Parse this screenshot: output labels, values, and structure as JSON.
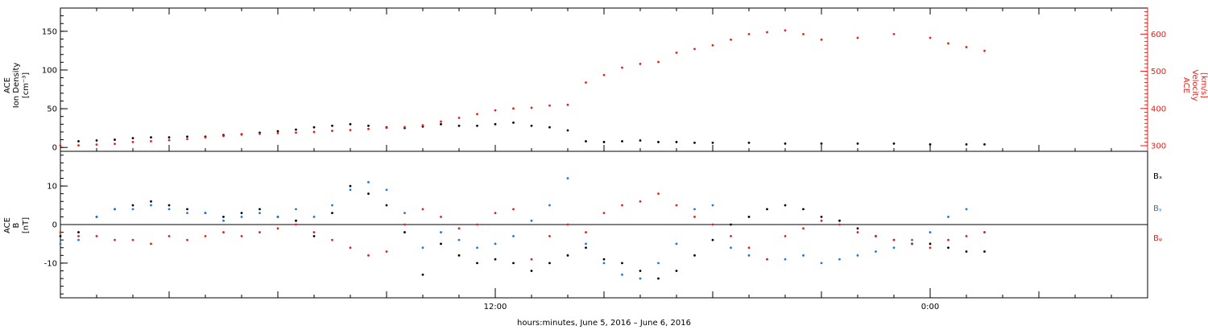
{
  "xlabel": "hours:minutes,  June  5, 2016 – June  6, 2016",
  "x_ticks": [
    {
      "hour": 12,
      "label": "12:00"
    },
    {
      "hour": 24,
      "label": "0:00"
    }
  ],
  "x_range_hours": [
    0,
    30
  ],
  "colors": {
    "black": "#000000",
    "red": "#e8201a",
    "blue": "#1f77d4"
  },
  "chart_data": [
    {
      "type": "scatter",
      "panel": "top",
      "ylabel_left": [
        "ACE",
        "Ion Density",
        "[cm⁻³]"
      ],
      "ylabel_right": [
        "ACE",
        "Velocity",
        "[km/s]"
      ],
      "ylim_left": [
        -5,
        180
      ],
      "ylim_right": [
        285,
        670
      ],
      "left_ticks": [
        "0",
        "50",
        "100",
        "150"
      ],
      "right_ticks": [
        "300",
        "400",
        "500",
        "600"
      ],
      "series": [
        {
          "name": "Ion Density",
          "axis": "left",
          "color": "black",
          "points": [
            [
              0.5,
              8
            ],
            [
              1,
              9
            ],
            [
              1.5,
              10
            ],
            [
              2,
              12
            ],
            [
              2.5,
              13
            ],
            [
              3,
              13
            ],
            [
              3.5,
              14
            ],
            [
              4,
              14
            ],
            [
              4.5,
              16
            ],
            [
              5,
              17
            ],
            [
              5.5,
              19
            ],
            [
              6,
              21
            ],
            [
              6.5,
              23
            ],
            [
              7,
              26
            ],
            [
              7.5,
              28
            ],
            [
              8,
              30
            ],
            [
              8.5,
              28
            ],
            [
              9,
              26
            ],
            [
              9.5,
              25
            ],
            [
              10,
              27
            ],
            [
              10.5,
              30
            ],
            [
              11,
              28
            ],
            [
              11.5,
              28
            ],
            [
              12,
              30
            ],
            [
              12.5,
              32
            ],
            [
              13,
              28
            ],
            [
              13.5,
              26
            ],
            [
              14,
              22
            ],
            [
              14.5,
              8
            ],
            [
              15,
              7
            ],
            [
              15.5,
              8
            ],
            [
              16,
              9
            ],
            [
              16.5,
              7
            ],
            [
              17,
              7
            ],
            [
              17.5,
              6
            ],
            [
              18,
              6
            ],
            [
              19,
              6
            ],
            [
              20,
              5
            ],
            [
              21,
              5
            ],
            [
              22,
              5
            ],
            [
              23,
              5
            ],
            [
              24,
              4
            ],
            [
              25,
              4
            ],
            [
              25.5,
              4
            ]
          ]
        },
        {
          "name": "Velocity",
          "axis": "right",
          "color": "red",
          "points": [
            [
              0,
              300
            ],
            [
              0.5,
              301
            ],
            [
              1,
              303
            ],
            [
              1.5,
              305
            ],
            [
              2,
              310
            ],
            [
              2.5,
              312
            ],
            [
              3,
              315
            ],
            [
              3.5,
              318
            ],
            [
              4,
              322
            ],
            [
              4.5,
              326
            ],
            [
              5,
              330
            ],
            [
              5.5,
              332
            ],
            [
              6,
              334
            ],
            [
              6.5,
              335
            ],
            [
              7,
              337
            ],
            [
              7.5,
              340
            ],
            [
              8,
              342
            ],
            [
              8.5,
              345
            ],
            [
              9,
              348
            ],
            [
              9.5,
              350
            ],
            [
              10,
              355
            ],
            [
              10.5,
              365
            ],
            [
              11,
              375
            ],
            [
              11.5,
              385
            ],
            [
              12,
              395
            ],
            [
              12.5,
              400
            ],
            [
              13,
              402
            ],
            [
              13.5,
              408
            ],
            [
              14,
              410
            ],
            [
              14.5,
              470
            ],
            [
              15,
              490
            ],
            [
              15.5,
              510
            ],
            [
              16,
              520
            ],
            [
              16.5,
              525
            ],
            [
              17,
              550
            ],
            [
              17.5,
              560
            ],
            [
              18,
              570
            ],
            [
              18.5,
              585
            ],
            [
              19,
              600
            ],
            [
              19.5,
              605
            ],
            [
              20,
              610
            ],
            [
              20.5,
              600
            ],
            [
              21,
              585
            ],
            [
              22,
              590
            ],
            [
              23,
              600
            ],
            [
              24,
              590
            ],
            [
              24.5,
              575
            ],
            [
              25,
              565
            ],
            [
              25.5,
              555
            ]
          ]
        }
      ]
    },
    {
      "type": "scatter",
      "panel": "bottom",
      "ylabel_left": [
        "ACE",
        "B",
        "[nT]"
      ],
      "ylim": [
        -19,
        19
      ],
      "left_ticks": [
        "-10",
        "0",
        "10"
      ],
      "zero_line": true,
      "legend": [
        "Bₓ",
        "Bᵧ",
        "Bᵩ"
      ],
      "series": [
        {
          "name": "Bx",
          "color": "black",
          "points": [
            [
              0,
              -3
            ],
            [
              0.5,
              -2
            ],
            [
              1,
              2
            ],
            [
              1.5,
              4
            ],
            [
              2,
              5
            ],
            [
              2.5,
              6
            ],
            [
              3,
              5
            ],
            [
              3.5,
              4
            ],
            [
              4,
              3
            ],
            [
              4.5,
              2
            ],
            [
              5,
              3
            ],
            [
              5.5,
              4
            ],
            [
              6,
              2
            ],
            [
              6.5,
              1
            ],
            [
              7,
              -3
            ],
            [
              7.5,
              3
            ],
            [
              8,
              10
            ],
            [
              8.5,
              8
            ],
            [
              9,
              5
            ],
            [
              9.5,
              -2
            ],
            [
              10,
              -13
            ],
            [
              10.5,
              -5
            ],
            [
              11,
              -8
            ],
            [
              11.5,
              -10
            ],
            [
              12,
              -9
            ],
            [
              12.5,
              -10
            ],
            [
              13,
              -12
            ],
            [
              13.5,
              -10
            ],
            [
              14,
              -8
            ],
            [
              14.5,
              -6
            ],
            [
              15,
              -9
            ],
            [
              15.5,
              -10
            ],
            [
              16,
              -12
            ],
            [
              16.5,
              -14
            ],
            [
              17,
              -12
            ],
            [
              17.5,
              -8
            ],
            [
              18,
              -4
            ],
            [
              18.5,
              0
            ],
            [
              19,
              2
            ],
            [
              19.5,
              4
            ],
            [
              20,
              5
            ],
            [
              20.5,
              4
            ],
            [
              21,
              2
            ],
            [
              21.5,
              1
            ],
            [
              22,
              -1
            ],
            [
              22.5,
              -3
            ],
            [
              23,
              -4
            ],
            [
              23.5,
              -5
            ],
            [
              24,
              -5
            ],
            [
              24.5,
              -6
            ],
            [
              25,
              -7
            ],
            [
              25.5,
              -7
            ]
          ]
        },
        {
          "name": "By",
          "color": "blue",
          "points": [
            [
              0,
              -5
            ],
            [
              0.5,
              -4
            ],
            [
              1,
              2
            ],
            [
              1.5,
              4
            ],
            [
              2,
              4
            ],
            [
              2.5,
              5
            ],
            [
              3,
              4
            ],
            [
              3.5,
              3
            ],
            [
              4,
              3
            ],
            [
              4.5,
              1
            ],
            [
              5,
              2
            ],
            [
              5.5,
              3
            ],
            [
              6,
              2
            ],
            [
              6.5,
              4
            ],
            [
              7,
              2
            ],
            [
              7.5,
              5
            ],
            [
              8,
              9
            ],
            [
              8.5,
              11
            ],
            [
              9,
              9
            ],
            [
              9.5,
              3
            ],
            [
              10,
              -6
            ],
            [
              10.5,
              -2
            ],
            [
              11,
              -4
            ],
            [
              11.5,
              -6
            ],
            [
              12,
              -5
            ],
            [
              12.5,
              -3
            ],
            [
              13,
              1
            ],
            [
              13.5,
              5
            ],
            [
              14,
              12
            ],
            [
              14.5,
              -5
            ],
            [
              15,
              -10
            ],
            [
              15.5,
              -13
            ],
            [
              16,
              -14
            ],
            [
              16.5,
              -10
            ],
            [
              17,
              -5
            ],
            [
              17.5,
              4
            ],
            [
              18,
              5
            ],
            [
              18.5,
              -6
            ],
            [
              19,
              -8
            ],
            [
              19.5,
              -9
            ],
            [
              20,
              -9
            ],
            [
              20.5,
              -8
            ],
            [
              21,
              -10
            ],
            [
              21.5,
              -9
            ],
            [
              22,
              -8
            ],
            [
              22.5,
              -7
            ],
            [
              23,
              -6
            ],
            [
              23.5,
              -4
            ],
            [
              24,
              -2
            ],
            [
              24.5,
              2
            ],
            [
              25,
              4
            ],
            [
              25.5,
              -2
            ]
          ]
        },
        {
          "name": "Bz",
          "color": "red",
          "points": [
            [
              0,
              -2
            ],
            [
              0.5,
              -3
            ],
            [
              1,
              -3
            ],
            [
              1.5,
              -4
            ],
            [
              2,
              -4
            ],
            [
              2.5,
              -5
            ],
            [
              3,
              -3
            ],
            [
              3.5,
              -4
            ],
            [
              4,
              -3
            ],
            [
              4.5,
              -2
            ],
            [
              5,
              -3
            ],
            [
              5.5,
              -2
            ],
            [
              6,
              -1
            ],
            [
              6.5,
              0
            ],
            [
              7,
              -2
            ],
            [
              7.5,
              -4
            ],
            [
              8,
              -6
            ],
            [
              8.5,
              -8
            ],
            [
              9,
              -7
            ],
            [
              9.5,
              0
            ],
            [
              10,
              4
            ],
            [
              10.5,
              2
            ],
            [
              11,
              -1
            ],
            [
              11.5,
              0
            ],
            [
              12,
              3
            ],
            [
              12.5,
              4
            ],
            [
              13,
              -9
            ],
            [
              13.5,
              -3
            ],
            [
              14,
              0
            ],
            [
              14.5,
              -2
            ],
            [
              15,
              3
            ],
            [
              15.5,
              5
            ],
            [
              16,
              6
            ],
            [
              16.5,
              8
            ],
            [
              17,
              5
            ],
            [
              17.5,
              2
            ],
            [
              18,
              0
            ],
            [
              18.5,
              -3
            ],
            [
              19,
              -6
            ],
            [
              19.5,
              -9
            ],
            [
              20,
              -3
            ],
            [
              20.5,
              -1
            ],
            [
              21,
              1
            ],
            [
              21.5,
              0
            ],
            [
              22,
              -2
            ],
            [
              22.5,
              -3
            ],
            [
              23,
              -4
            ],
            [
              23.5,
              -5
            ],
            [
              24,
              -6
            ],
            [
              24.5,
              -4
            ],
            [
              25,
              -3
            ],
            [
              25.5,
              -2
            ]
          ]
        }
      ]
    }
  ]
}
